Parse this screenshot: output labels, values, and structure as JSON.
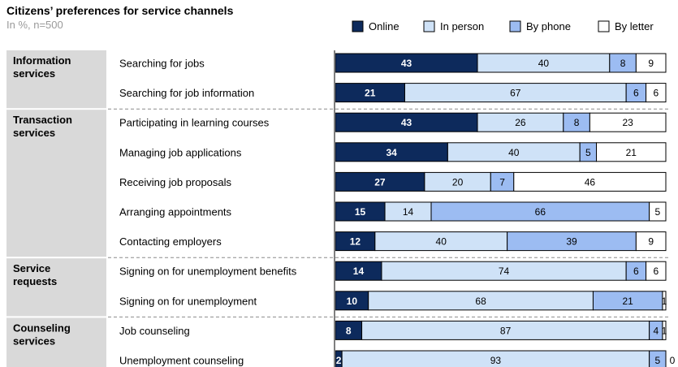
{
  "title": "Citizens’ preferences for service channels",
  "subtitle": "In %, n=500",
  "colors": {
    "Online": "#0d2a5c",
    "In person": "#cfe2f7",
    "By phone": "#9cbcf2",
    "By letter": "#ffffff",
    "group_bg": "#d9d9d9",
    "divider": "#8c8c8c",
    "axis": "#7f7f7f"
  },
  "chart_data": {
    "type": "bar",
    "stacked": true,
    "orientation": "horizontal",
    "unit": "%",
    "legend_position": "top-right",
    "series_names": [
      "Online",
      "In person",
      "By phone",
      "By letter"
    ],
    "groups": [
      {
        "label": "Information services",
        "rows": [
          {
            "label": "Searching for jobs",
            "values": [
              43,
              40,
              8,
              9
            ]
          },
          {
            "label": "Searching for job information",
            "values": [
              21,
              67,
              6,
              6
            ]
          }
        ]
      },
      {
        "label": "Transaction services",
        "rows": [
          {
            "label": "Participating in learning courses",
            "values": [
              43,
              26,
              8,
              23
            ]
          },
          {
            "label": "Managing job applications",
            "values": [
              34,
              40,
              5,
              21
            ]
          },
          {
            "label": "Receiving job proposals",
            "values": [
              27,
              20,
              7,
              46
            ]
          },
          {
            "label": "Arranging appointments",
            "values": [
              15,
              14,
              66,
              5
            ]
          },
          {
            "label": "Contacting employers",
            "values": [
              12,
              40,
              39,
              9
            ]
          }
        ]
      },
      {
        "label": "Service requests",
        "rows": [
          {
            "label": "Signing on for unemployment benefits",
            "values": [
              14,
              74,
              6,
              6
            ]
          },
          {
            "label": "Signing on for unemployment",
            "values": [
              10,
              68,
              21,
              1
            ]
          }
        ]
      },
      {
        "label": "Counseling services",
        "rows": [
          {
            "label": "Job counseling",
            "values": [
              8,
              87,
              4,
              1
            ]
          },
          {
            "label": "Unemployment counseling",
            "values": [
              2,
              93,
              5,
              0
            ]
          }
        ]
      }
    ]
  }
}
